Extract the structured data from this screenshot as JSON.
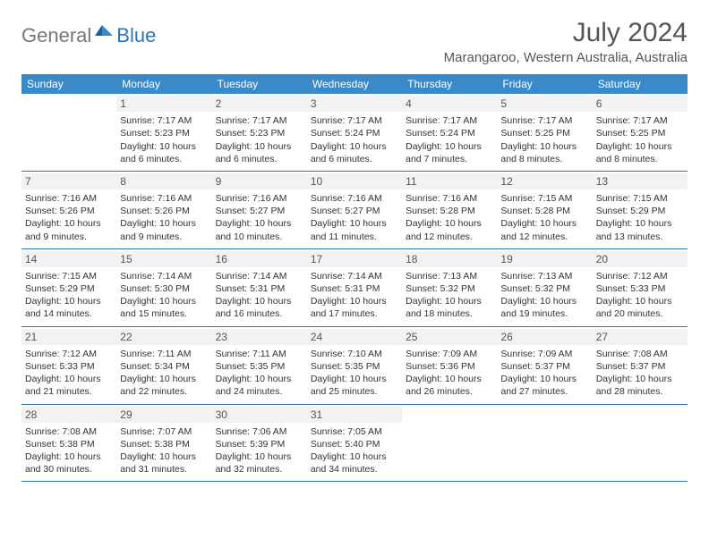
{
  "brand": {
    "text1": "General",
    "text2": "Blue"
  },
  "title": "July 2024",
  "location": "Marangaroo, Western Australia, Australia",
  "colors": {
    "header_bg": "#3a8ac9",
    "header_text": "#ffffff",
    "border": "#2e74b5",
    "daynum_bg": "#f2f2f2",
    "text": "#333333",
    "title": "#555555"
  },
  "day_headers": [
    "Sunday",
    "Monday",
    "Tuesday",
    "Wednesday",
    "Thursday",
    "Friday",
    "Saturday"
  ],
  "weeks": [
    [
      {
        "num": "",
        "lines": []
      },
      {
        "num": "1",
        "lines": [
          "Sunrise: 7:17 AM",
          "Sunset: 5:23 PM",
          "Daylight: 10 hours and 6 minutes."
        ]
      },
      {
        "num": "2",
        "lines": [
          "Sunrise: 7:17 AM",
          "Sunset: 5:23 PM",
          "Daylight: 10 hours and 6 minutes."
        ]
      },
      {
        "num": "3",
        "lines": [
          "Sunrise: 7:17 AM",
          "Sunset: 5:24 PM",
          "Daylight: 10 hours and 6 minutes."
        ]
      },
      {
        "num": "4",
        "lines": [
          "Sunrise: 7:17 AM",
          "Sunset: 5:24 PM",
          "Daylight: 10 hours and 7 minutes."
        ]
      },
      {
        "num": "5",
        "lines": [
          "Sunrise: 7:17 AM",
          "Sunset: 5:25 PM",
          "Daylight: 10 hours and 8 minutes."
        ]
      },
      {
        "num": "6",
        "lines": [
          "Sunrise: 7:17 AM",
          "Sunset: 5:25 PM",
          "Daylight: 10 hours and 8 minutes."
        ]
      }
    ],
    [
      {
        "num": "7",
        "lines": [
          "Sunrise: 7:16 AM",
          "Sunset: 5:26 PM",
          "Daylight: 10 hours and 9 minutes."
        ]
      },
      {
        "num": "8",
        "lines": [
          "Sunrise: 7:16 AM",
          "Sunset: 5:26 PM",
          "Daylight: 10 hours and 9 minutes."
        ]
      },
      {
        "num": "9",
        "lines": [
          "Sunrise: 7:16 AM",
          "Sunset: 5:27 PM",
          "Daylight: 10 hours and 10 minutes."
        ]
      },
      {
        "num": "10",
        "lines": [
          "Sunrise: 7:16 AM",
          "Sunset: 5:27 PM",
          "Daylight: 10 hours and 11 minutes."
        ]
      },
      {
        "num": "11",
        "lines": [
          "Sunrise: 7:16 AM",
          "Sunset: 5:28 PM",
          "Daylight: 10 hours and 12 minutes."
        ]
      },
      {
        "num": "12",
        "lines": [
          "Sunrise: 7:15 AM",
          "Sunset: 5:28 PM",
          "Daylight: 10 hours and 12 minutes."
        ]
      },
      {
        "num": "13",
        "lines": [
          "Sunrise: 7:15 AM",
          "Sunset: 5:29 PM",
          "Daylight: 10 hours and 13 minutes."
        ]
      }
    ],
    [
      {
        "num": "14",
        "lines": [
          "Sunrise: 7:15 AM",
          "Sunset: 5:29 PM",
          "Daylight: 10 hours and 14 minutes."
        ]
      },
      {
        "num": "15",
        "lines": [
          "Sunrise: 7:14 AM",
          "Sunset: 5:30 PM",
          "Daylight: 10 hours and 15 minutes."
        ]
      },
      {
        "num": "16",
        "lines": [
          "Sunrise: 7:14 AM",
          "Sunset: 5:31 PM",
          "Daylight: 10 hours and 16 minutes."
        ]
      },
      {
        "num": "17",
        "lines": [
          "Sunrise: 7:14 AM",
          "Sunset: 5:31 PM",
          "Daylight: 10 hours and 17 minutes."
        ]
      },
      {
        "num": "18",
        "lines": [
          "Sunrise: 7:13 AM",
          "Sunset: 5:32 PM",
          "Daylight: 10 hours and 18 minutes."
        ]
      },
      {
        "num": "19",
        "lines": [
          "Sunrise: 7:13 AM",
          "Sunset: 5:32 PM",
          "Daylight: 10 hours and 19 minutes."
        ]
      },
      {
        "num": "20",
        "lines": [
          "Sunrise: 7:12 AM",
          "Sunset: 5:33 PM",
          "Daylight: 10 hours and 20 minutes."
        ]
      }
    ],
    [
      {
        "num": "21",
        "lines": [
          "Sunrise: 7:12 AM",
          "Sunset: 5:33 PM",
          "Daylight: 10 hours and 21 minutes."
        ]
      },
      {
        "num": "22",
        "lines": [
          "Sunrise: 7:11 AM",
          "Sunset: 5:34 PM",
          "Daylight: 10 hours and 22 minutes."
        ]
      },
      {
        "num": "23",
        "lines": [
          "Sunrise: 7:11 AM",
          "Sunset: 5:35 PM",
          "Daylight: 10 hours and 24 minutes."
        ]
      },
      {
        "num": "24",
        "lines": [
          "Sunrise: 7:10 AM",
          "Sunset: 5:35 PM",
          "Daylight: 10 hours and 25 minutes."
        ]
      },
      {
        "num": "25",
        "lines": [
          "Sunrise: 7:09 AM",
          "Sunset: 5:36 PM",
          "Daylight: 10 hours and 26 minutes."
        ]
      },
      {
        "num": "26",
        "lines": [
          "Sunrise: 7:09 AM",
          "Sunset: 5:37 PM",
          "Daylight: 10 hours and 27 minutes."
        ]
      },
      {
        "num": "27",
        "lines": [
          "Sunrise: 7:08 AM",
          "Sunset: 5:37 PM",
          "Daylight: 10 hours and 28 minutes."
        ]
      }
    ],
    [
      {
        "num": "28",
        "lines": [
          "Sunrise: 7:08 AM",
          "Sunset: 5:38 PM",
          "Daylight: 10 hours and 30 minutes."
        ]
      },
      {
        "num": "29",
        "lines": [
          "Sunrise: 7:07 AM",
          "Sunset: 5:38 PM",
          "Daylight: 10 hours and 31 minutes."
        ]
      },
      {
        "num": "30",
        "lines": [
          "Sunrise: 7:06 AM",
          "Sunset: 5:39 PM",
          "Daylight: 10 hours and 32 minutes."
        ]
      },
      {
        "num": "31",
        "lines": [
          "Sunrise: 7:05 AM",
          "Sunset: 5:40 PM",
          "Daylight: 10 hours and 34 minutes."
        ]
      },
      {
        "num": "",
        "lines": []
      },
      {
        "num": "",
        "lines": []
      },
      {
        "num": "",
        "lines": []
      }
    ]
  ]
}
